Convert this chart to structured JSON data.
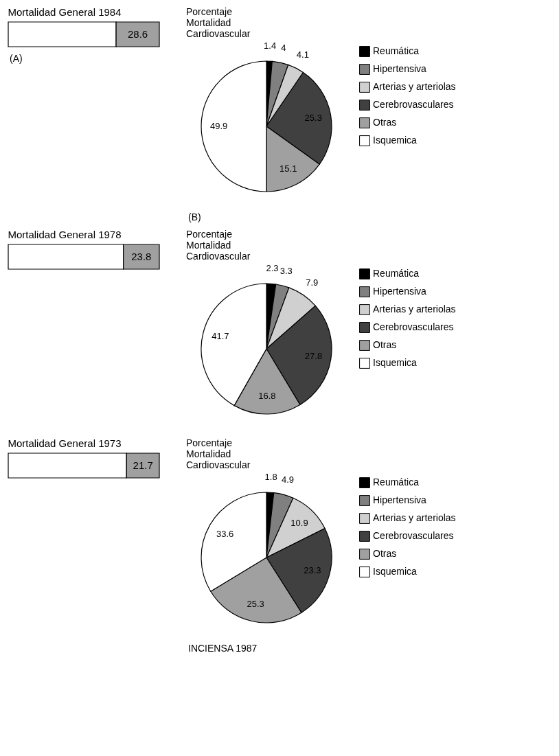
{
  "chart_data": [
    {
      "type": "bar",
      "orientation": "horizontal",
      "stacked": true,
      "title": "Mortalidad General 1984",
      "categories": [
        null
      ],
      "annotations": [
        "(A)"
      ],
      "series": [
        {
          "color": "#ffffff",
          "values": [
            71.4
          ]
        },
        {
          "color": "#a0a0a0",
          "values": [
            28.6
          ],
          "value_labels": [
            "28.6"
          ]
        }
      ]
    },
    {
      "type": "pie",
      "title": "Porcentaje Mortalidad Cardiovascular",
      "data_labels": true,
      "legend": "right",
      "annotations": [
        "(B)"
      ],
      "categories": [
        "Reumática",
        "Hipertensiva",
        "Arterias y arteriolas",
        "Cerebrovasculares",
        "Otras",
        "Isquemica"
      ],
      "values": [
        1.4,
        4,
        4.1,
        25.3,
        15.1,
        49.9
      ],
      "colors": [
        "#000000",
        "#808080",
        "#d0d0d0",
        "#404040",
        "#a0a0a0",
        "#ffffff"
      ]
    },
    {
      "type": "bar",
      "orientation": "horizontal",
      "stacked": true,
      "title": "Mortalidad General 1978",
      "categories": [
        null
      ],
      "series": [
        {
          "color": "#ffffff",
          "values": [
            76.2
          ]
        },
        {
          "color": "#a0a0a0",
          "values": [
            23.8
          ],
          "value_labels": [
            "23.8"
          ]
        }
      ]
    },
    {
      "type": "pie",
      "title": "Porcentaje Mortalidad Cardiovascular",
      "data_labels": true,
      "legend": "right",
      "categories": [
        "Reumática",
        "Hipertensiva",
        "Arterias y arteriolas",
        "Cerebrovasculares",
        "Otras",
        "Isquemica"
      ],
      "values": [
        2.3,
        3.3,
        7.9,
        27.8,
        16.8,
        41.7
      ],
      "colors": [
        "#000000",
        "#808080",
        "#d0d0d0",
        "#404040",
        "#a0a0a0",
        "#ffffff"
      ]
    },
    {
      "type": "bar",
      "orientation": "horizontal",
      "stacked": true,
      "title": "Mortalidad General 1973",
      "categories": [
        null
      ],
      "series": [
        {
          "color": "#ffffff",
          "values": [
            78.3
          ]
        },
        {
          "color": "#a0a0a0",
          "values": [
            21.7
          ],
          "value_labels": [
            "21.7"
          ]
        }
      ]
    },
    {
      "type": "pie",
      "title": "Porcentaje Mortalidad Cardiovascular",
      "data_labels": true,
      "legend": "right",
      "annotations": [
        "INCIENSA 1987"
      ],
      "categories": [
        "Reumática",
        "Hipertensiva",
        "Arterias y arteriolas",
        "Cerebrovasculares",
        "Otras",
        "Isquemica"
      ],
      "values": [
        1.8,
        4.9,
        10.9,
        23.3,
        25.3,
        33.6
      ],
      "colors": [
        "#000000",
        "#808080",
        "#d0d0d0",
        "#404040",
        "#a0a0a0",
        "#ffffff"
      ]
    }
  ]
}
